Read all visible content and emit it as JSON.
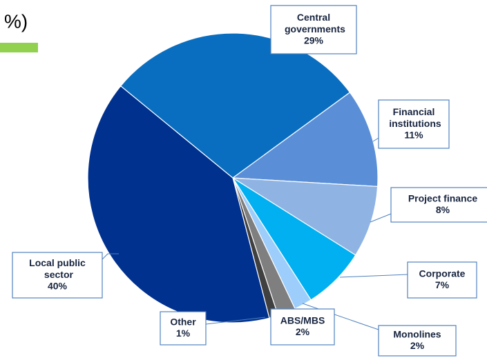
{
  "chart_data": {
    "type": "pie",
    "title": "%)",
    "categories": [
      "Central governments",
      "Financial institutions",
      "Project finance",
      "Corporate",
      "Monolines",
      "ABS/MBS",
      "Other",
      "Local public sector"
    ],
    "values": [
      29,
      11,
      8,
      7,
      2,
      2,
      1,
      40
    ],
    "value_labels": [
      "29%",
      "11%",
      "8%",
      "7%",
      "2%",
      "2%",
      "1%",
      "40%"
    ],
    "colors": [
      "#0a6ec0",
      "#5a8fd8",
      "#8fb4e3",
      "#00b0f0",
      "#9dcdfb",
      "#7f7f7f",
      "#404040",
      "#00318f"
    ]
  }
}
